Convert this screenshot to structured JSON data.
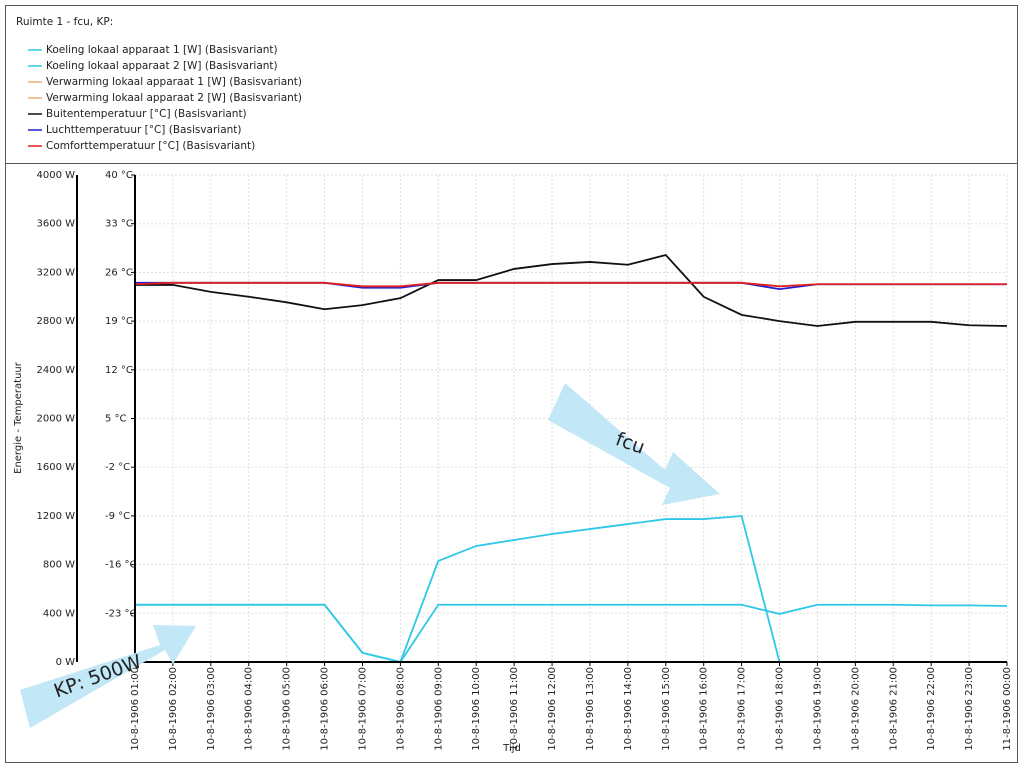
{
  "chart_data": {
    "type": "line",
    "title": "Ruimte 1 - fcu, KP:",
    "y_label": "Energie - Temperatuur",
    "x_label": "Tijd",
    "annotations": [
      "fcu",
      "KP: 500W"
    ],
    "categories": [
      "10-8-1906 01:00",
      "10-8-1906 02:00",
      "10-8-1906 03:00",
      "10-8-1906 04:00",
      "10-8-1906 05:00",
      "10-8-1906 06:00",
      "10-8-1906 07:00",
      "10-8-1906 08:00",
      "10-8-1906 09:00",
      "10-8-1906 10:00",
      "10-8-1906 11:00",
      "10-8-1906 12:00",
      "10-8-1906 13:00",
      "10-8-1906 14:00",
      "10-8-1906 15:00",
      "10-8-1906 16:00",
      "10-8-1906 17:00",
      "10-8-1906 18:00",
      "10-8-1906 19:00",
      "10-8-1906 20:00",
      "10-8-1906 21:00",
      "10-8-1906 22:00",
      "10-8-1906 23:00",
      "11-8-1906 00:00"
    ],
    "ylim": [
      0,
      4000
    ],
    "yticks": [
      {
        "value": 4000,
        "label": "4000 W"
      },
      {
        "value": 3600,
        "label": "3600 W"
      },
      {
        "value": 3200,
        "label": "3200 W"
      },
      {
        "value": 2800,
        "label": "2800 W"
      },
      {
        "value": 2400,
        "label": "2400 W"
      },
      {
        "value": 2000,
        "label": "2000 W"
      },
      {
        "value": 1600,
        "label": "1600 W"
      },
      {
        "value": 1200,
        "label": "1200 W"
      },
      {
        "value": 800,
        "label": "800 W"
      },
      {
        "value": 400,
        "label": "400 W"
      },
      {
        "value": 0,
        "label": "0 W"
      }
    ],
    "y2lim": [
      -30,
      40
    ],
    "y2ticks": [
      {
        "value": 40,
        "label": "40 °C"
      },
      {
        "value": 33,
        "label": "33 °C"
      },
      {
        "value": 26,
        "label": "26 °C"
      },
      {
        "value": 19,
        "label": "19 °C"
      },
      {
        "value": 12,
        "label": "12 °C"
      },
      {
        "value": 5,
        "label": "5 °C"
      },
      {
        "value": -2,
        "label": "-2 °C"
      },
      {
        "value": -9,
        "label": "-9 °C"
      },
      {
        "value": -16,
        "label": "-16 °C"
      },
      {
        "value": -23,
        "label": "-23 °C"
      }
    ],
    "grid": true,
    "series": [
      {
        "name": "Koeling lokaal apparaat 1 [W] (Basisvariant)",
        "color": "#2ec8e6",
        "values": [
          470,
          470,
          470,
          470,
          470,
          470,
          75,
          0,
          470,
          470,
          470,
          470,
          470,
          470,
          470,
          470,
          470,
          395,
          470,
          470,
          470,
          465,
          465,
          460
        ]
      },
      {
        "name": "Koeling lokaal apparaat 2 [W] (Basisvariant)",
        "color": "#2ec8e6",
        "values": [
          470,
          470,
          470,
          470,
          470,
          470,
          75,
          0,
          830,
          953,
          1002,
          1051,
          1092,
          1133,
          1174,
          1174,
          1199,
          0,
          0,
          0,
          0,
          0,
          0,
          0
        ]
      },
      {
        "name": "Verwarming lokaal apparaat 1 [W] (Basisvariant)",
        "color": "#e8b070",
        "values": [
          0,
          0,
          0,
          0,
          0,
          0,
          0,
          0,
          0,
          0,
          0,
          0,
          0,
          0,
          0,
          0,
          0,
          0,
          0,
          0,
          0,
          0,
          0,
          0
        ]
      },
      {
        "name": "Verwarming lokaal apparaat 2 [W] (Basisvariant)",
        "color": "#e8b070",
        "values": [
          0,
          0,
          0,
          0,
          0,
          0,
          0,
          0,
          0,
          0,
          0,
          0,
          0,
          0,
          0,
          0,
          0,
          0,
          0,
          0,
          0,
          0,
          0,
          0
        ]
      },
      {
        "name": "Buitentemperatuur [°C] (Basisvariant)",
        "color": "#111111",
        "axis": "y2",
        "values": [
          24.2,
          24.2,
          23.2,
          22.5,
          21.7,
          20.7,
          21.3,
          22.3,
          24.9,
          24.9,
          26.5,
          27.2,
          27.5,
          27.1,
          28.5,
          22.5,
          19.9,
          19.0,
          18.3,
          18.9,
          18.9,
          18.9,
          18.4,
          18.3
        ]
      },
      {
        "name": "Luchttemperatuur [°C] (Basisvariant)",
        "color": "#2020d0",
        "axis": "y2",
        "values": [
          24.5,
          24.5,
          24.5,
          24.5,
          24.5,
          24.5,
          23.8,
          23.8,
          24.5,
          24.5,
          24.5,
          24.5,
          24.5,
          24.5,
          24.5,
          24.5,
          24.5,
          23.6,
          24.3,
          24.3,
          24.3,
          24.3,
          24.3,
          24.3
        ]
      },
      {
        "name": "Comforttemperatuur [°C] (Basisvariant)",
        "color": "#e02020",
        "axis": "y2",
        "values": [
          24.3,
          24.5,
          24.5,
          24.5,
          24.5,
          24.5,
          24.0,
          24.0,
          24.5,
          24.5,
          24.5,
          24.5,
          24.5,
          24.5,
          24.5,
          24.5,
          24.5,
          24.0,
          24.3,
          24.3,
          24.3,
          24.3,
          24.3,
          24.3
        ]
      }
    ]
  }
}
